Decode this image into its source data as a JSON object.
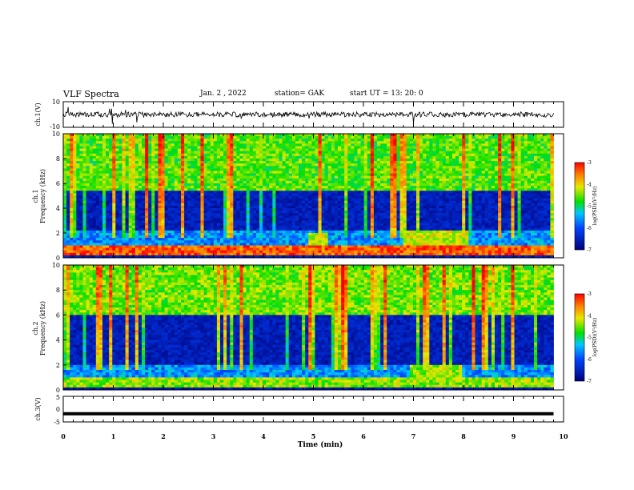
{
  "header": {
    "title": "VLF Spectra",
    "date": "Jan. 2 , 2022",
    "station": "station= GAK",
    "start": "start UT = 13: 20: 0"
  },
  "chart_data": [
    {
      "type": "line",
      "name": "ch1-waveform",
      "ylabel": "ch.1(V)",
      "ylim": [
        -10,
        10
      ],
      "y_ticks": [
        "10",
        "-10"
      ],
      "xlim": [
        0,
        10
      ],
      "approx_level": 0,
      "approx_amplitude": 2.5
    },
    {
      "type": "heatmap",
      "name": "ch1-spectrogram",
      "ylabel": "ch.1 Frequency (kHz)",
      "ylabel_line1": "ch.1",
      "ylabel_line2": "Frequency (kHz)",
      "ylim": [
        0,
        10
      ],
      "y_ticks": [
        "0",
        "2",
        "4",
        "6",
        "8",
        "10"
      ],
      "xlim": [
        0,
        9.8
      ],
      "colorbar": {
        "label": "log(PSD)(V²/Hz)",
        "range": [
          -7,
          -3
        ],
        "ticks": [
          "-3",
          "-4",
          "-5",
          "-6",
          "-7"
        ]
      },
      "features": [
        {
          "kind": "band",
          "f_low_khz": 0.2,
          "f_high_khz": 1.0,
          "level": -3.4
        },
        {
          "kind": "band",
          "f_low_khz": 1.0,
          "f_high_khz": 2.2,
          "level": -5.6
        },
        {
          "kind": "band",
          "f_low_khz": 5.5,
          "f_high_khz": 10,
          "level": -4.6
        },
        {
          "kind": "patch",
          "t_start_min": 4.9,
          "t_end_min": 5.3,
          "f_low_khz": 1.0,
          "f_high_khz": 2.0,
          "level": -4.2
        },
        {
          "kind": "patch",
          "t_start_min": 6.8,
          "t_end_min": 8.1,
          "f_low_khz": 0.8,
          "f_high_khz": 2.2,
          "level": -4.2
        }
      ]
    },
    {
      "type": "heatmap",
      "name": "ch2-spectrogram",
      "ylabel": "ch.2 Frequency (kHz)",
      "ylabel_line1": "ch.2",
      "ylabel_line2": "Frequency (kHz)",
      "ylim": [
        0,
        10
      ],
      "y_ticks": [
        "0",
        "2",
        "4",
        "6",
        "8",
        "10"
      ],
      "xlim": [
        0,
        9.8
      ],
      "colorbar": {
        "label": "log(PSD)(V²/Hz)",
        "range": [
          -7,
          -3
        ],
        "ticks": [
          "-3",
          "-4",
          "-5",
          "-6",
          "-7"
        ]
      },
      "features": [
        {
          "kind": "band",
          "f_low_khz": 0.2,
          "f_high_khz": 1.0,
          "level": -4.4
        },
        {
          "kind": "band",
          "f_low_khz": 1.0,
          "f_high_khz": 2.0,
          "level": -5.6
        },
        {
          "kind": "band",
          "f_low_khz": 6.0,
          "f_high_khz": 10,
          "level": -4.5
        },
        {
          "kind": "patch",
          "t_start_min": 6.9,
          "t_end_min": 8.0,
          "f_low_khz": 0.8,
          "f_high_khz": 2.0,
          "level": -4.4
        }
      ]
    },
    {
      "type": "line",
      "name": "ch3-waveform",
      "ylabel": "ch.3(V)",
      "ylim": [
        -5,
        5
      ],
      "y_ticks": [
        "5",
        "0",
        "-5"
      ],
      "xlim": [
        0,
        9.8
      ],
      "approx_level": -1.8,
      "xlabel": "Time (min)",
      "x_ticks": [
        "0",
        "1",
        "2",
        "3",
        "4",
        "5",
        "6",
        "7",
        "8",
        "9",
        "10"
      ]
    }
  ],
  "colors": {
    "low": "#00007a",
    "mid": "#00e000",
    "high": "#ff0000",
    "trace": "#000000"
  }
}
